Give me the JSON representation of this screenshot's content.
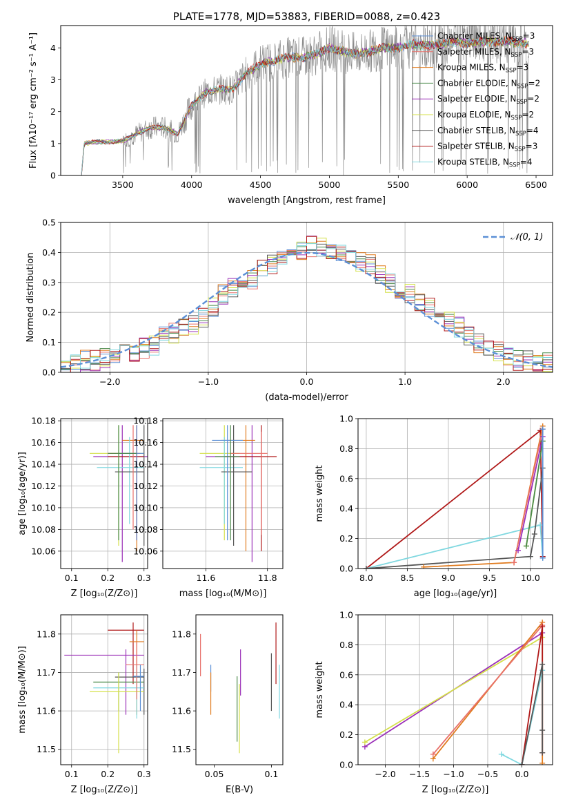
{
  "colors": {
    "chabrier_miles": "#5b8fd6",
    "salpeter_miles": "#e8706a",
    "kroupa_miles": "#e07b1f",
    "chabrier_elodie": "#4a8a4a",
    "salpeter_elodie": "#9b30b8",
    "kroupa_elodie": "#d4e04a",
    "chabrier_stelib": "#555555",
    "salpeter_stelib": "#b01818",
    "kroupa_stelib": "#80d8e0",
    "spectrum": "#8c8c8c",
    "normal": "#5b8fd6",
    "grid": "#b0b0b0"
  },
  "chart_data": [
    {
      "type": "line",
      "title": "PLATE=1778, MJD=53883, FIBERID=0088, z=0.423",
      "xlabel": "wavelength [Angstrom, rest frame]",
      "ylabel": "Flux [fλ10⁻¹⁷ erg cm⁻² s⁻¹ A⁻¹]",
      "xlim": [
        3050,
        6620
      ],
      "ylim": [
        0,
        4.7
      ],
      "xticks": [
        3500,
        4000,
        4500,
        5000,
        5500,
        6000,
        6500
      ],
      "yticks": [
        0,
        1,
        2,
        3,
        4
      ],
      "legend": [
        {
          "base": "Chabrier MILES, N",
          "sub": "SSP",
          "tail": "=3",
          "color": "chabrier_miles"
        },
        {
          "base": "Salpeter MILES, N",
          "sub": "SSP",
          "tail": "=3",
          "color": "salpeter_miles"
        },
        {
          "base": "Kroupa MILES, N",
          "sub": "SSP",
          "tail": "=3",
          "color": "kroupa_miles"
        },
        {
          "base": "Chabrier ELODIE, N",
          "sub": "SSP",
          "tail": "=2",
          "color": "chabrier_elodie"
        },
        {
          "base": "Salpeter ELODIE, N",
          "sub": "SSP",
          "tail": "=2",
          "color": "salpeter_elodie"
        },
        {
          "base": "Kroupa ELODIE, N",
          "sub": "SSP",
          "tail": "=2",
          "color": "kroupa_elodie"
        },
        {
          "base": "Chabrier STELIB, N",
          "sub": "SSP",
          "tail": "=4",
          "color": "chabrier_stelib"
        },
        {
          "base": "Salpeter STELIB, N",
          "sub": "SSP",
          "tail": "=3",
          "color": "salpeter_stelib"
        },
        {
          "base": "Kroupa STELIB, N",
          "sub": "SSP",
          "tail": "=4",
          "color": "kroupa_stelib"
        }
      ],
      "continuum": [
        [
          3200,
          0
        ],
        [
          3220,
          1.0
        ],
        [
          3300,
          1.05
        ],
        [
          3400,
          1.05
        ],
        [
          3500,
          1.08
        ],
        [
          3600,
          1.3
        ],
        [
          3700,
          1.5
        ],
        [
          3800,
          1.5
        ],
        [
          3900,
          1.3
        ],
        [
          4000,
          2.2
        ],
        [
          4100,
          2.6
        ],
        [
          4200,
          2.7
        ],
        [
          4300,
          2.7
        ],
        [
          4400,
          3.2
        ],
        [
          4500,
          3.5
        ],
        [
          4600,
          3.6
        ],
        [
          4700,
          3.7
        ],
        [
          4800,
          3.7
        ],
        [
          4900,
          3.8
        ],
        [
          5000,
          4.0
        ],
        [
          5100,
          3.9
        ],
        [
          5200,
          3.8
        ],
        [
          5300,
          3.9
        ],
        [
          5400,
          4.0
        ],
        [
          5500,
          4.0
        ],
        [
          5600,
          4.1
        ],
        [
          5700,
          4.1
        ],
        [
          5800,
          4.1
        ],
        [
          5900,
          4.2
        ],
        [
          6000,
          4.15
        ],
        [
          6100,
          4.2
        ],
        [
          6200,
          4.2
        ],
        [
          6300,
          4.2
        ],
        [
          6400,
          4.15
        ],
        [
          6450,
          4.15
        ]
      ]
    },
    {
      "type": "line",
      "xlabel": "(data-model)/error",
      "ylabel": "Normed distribution",
      "xlim": [
        -2.5,
        2.5
      ],
      "ylim": [
        0,
        0.5
      ],
      "xticks": [
        -2,
        -1,
        0,
        1,
        2
      ],
      "yticks": [
        0.0,
        0.1,
        0.2,
        0.3,
        0.4,
        0.5
      ],
      "legend_label": "𝒩(0, 1)",
      "bins": [
        -2.5,
        -2.4,
        -2.3,
        -2.2,
        -2.1,
        -2.0,
        -1.9,
        -1.8,
        -1.7,
        -1.6,
        -1.5,
        -1.4,
        -1.3,
        -1.2,
        -1.1,
        -1.0,
        -0.9,
        -0.8,
        -0.7,
        -0.6,
        -0.5,
        -0.4,
        -0.3,
        -0.2,
        -0.1,
        0.0,
        0.1,
        0.2,
        0.3,
        0.4,
        0.5,
        0.6,
        0.7,
        0.8,
        0.9,
        1.0,
        1.1,
        1.2,
        1.3,
        1.4,
        1.5,
        1.6,
        1.7,
        1.8,
        1.9,
        2.0,
        2.1,
        2.2,
        2.3,
        2.4
      ],
      "hist_base": [
        0.02,
        0.03,
        0.04,
        0.04,
        0.05,
        0.05,
        0.06,
        0.07,
        0.08,
        0.09,
        0.12,
        0.13,
        0.15,
        0.16,
        0.18,
        0.22,
        0.26,
        0.28,
        0.28,
        0.31,
        0.34,
        0.36,
        0.38,
        0.4,
        0.41,
        0.42,
        0.42,
        0.41,
        0.4,
        0.39,
        0.37,
        0.36,
        0.33,
        0.3,
        0.28,
        0.26,
        0.24,
        0.22,
        0.2,
        0.17,
        0.15,
        0.12,
        0.1,
        0.08,
        0.07,
        0.05,
        0.04,
        0.04,
        0.03,
        0.03
      ]
    },
    {
      "type": "scatter",
      "xlabel": "Z [log₁₀(Z/Z⊙)]",
      "ylabel": "age  [log₁₀(age/yr)]",
      "xlim": [
        0.07,
        0.31
      ],
      "ylim": [
        10.044,
        10.182
      ],
      "xticks": [
        0.1,
        0.2,
        0.3
      ],
      "yticks": [
        10.06,
        10.08,
        10.1,
        10.12,
        10.14,
        10.16,
        10.18
      ],
      "points": [
        {
          "c": "salpeter_elodie",
          "x": 0.24,
          "y": 10.147,
          "xe": [
            0.16,
            0.31
          ],
          "ye": [
            10.05,
            10.176
          ]
        },
        {
          "c": "kroupa_miles",
          "x": 0.28,
          "y": 10.162,
          "xe": [
            0.24,
            0.3
          ],
          "ye": [
            10.06,
            10.176
          ]
        },
        {
          "c": "salpeter_stelib",
          "x": 0.28,
          "y": 10.147,
          "xe": [
            0.2,
            0.3
          ],
          "ye": [
            10.07,
            10.176
          ]
        },
        {
          "c": "kroupa_elodie",
          "x": 0.23,
          "y": 10.15,
          "xe": [
            0.15,
            0.3
          ],
          "ye": [
            10.065,
            10.176
          ]
        },
        {
          "c": "kroupa_stelib",
          "x": 0.26,
          "y": 10.137,
          "xe": [
            0.17,
            0.3
          ],
          "ye": [
            10.085,
            10.165
          ]
        },
        {
          "c": "chabrier_stelib",
          "x": 0.3,
          "y": 10.133,
          "xe": [
            0.22,
            0.3
          ],
          "ye": [
            10.065,
            10.176
          ]
        },
        {
          "c": "salpeter_miles",
          "x": 0.27,
          "y": 10.15,
          "xe": [
            0.2,
            0.29
          ],
          "ye": [
            10.08,
            10.176
          ]
        },
        {
          "c": "chabrier_miles",
          "x": 0.28,
          "y": 10.15,
          "xe": [
            0.23,
            0.3
          ],
          "ye": [
            10.07,
            10.176
          ]
        },
        {
          "c": "chabrier_elodie",
          "x": 0.23,
          "y": 10.15,
          "xe": [
            0.2,
            0.28
          ],
          "ye": [
            10.07,
            10.176
          ]
        }
      ]
    },
    {
      "type": "scatter",
      "xlabel": "mass [log₁₀(M/M⊙)]",
      "ylabel": "",
      "xlim": [
        11.46,
        11.85
      ],
      "ylim": [
        10.044,
        10.182
      ],
      "xticks": [
        11.6,
        11.8
      ],
      "yticks": [
        10.06,
        10.08,
        10.1,
        10.12,
        10.14,
        10.16,
        10.18
      ],
      "points": [
        {
          "c": "salpeter_elodie",
          "x": 11.75,
          "y": 10.147,
          "xe": [
            11.6,
            11.78
          ],
          "ye": [
            10.05,
            10.176
          ]
        },
        {
          "c": "kroupa_miles",
          "x": 11.73,
          "y": 10.162,
          "xe": [
            11.65,
            11.76
          ],
          "ye": [
            10.06,
            10.176
          ]
        },
        {
          "c": "salpeter_stelib",
          "x": 11.78,
          "y": 10.147,
          "xe": [
            11.66,
            11.83
          ],
          "ye": [
            10.06,
            10.176
          ]
        },
        {
          "c": "kroupa_elodie",
          "x": 11.66,
          "y": 10.15,
          "xe": [
            11.58,
            11.71
          ],
          "ye": [
            10.07,
            10.176
          ]
        },
        {
          "c": "kroupa_stelib",
          "x": 11.66,
          "y": 10.137,
          "xe": [
            11.58,
            11.72
          ],
          "ye": [
            10.085,
            10.165
          ]
        },
        {
          "c": "chabrier_stelib",
          "x": 11.69,
          "y": 10.133,
          "xe": [
            11.65,
            11.75
          ],
          "ye": [
            10.065,
            10.176
          ]
        },
        {
          "c": "salpeter_miles",
          "x": 11.78,
          "y": 10.15,
          "xe": [
            11.68,
            11.8
          ],
          "ye": [
            10.075,
            10.17
          ]
        },
        {
          "c": "chabrier_miles",
          "x": 11.67,
          "y": 10.162,
          "xe": [
            11.62,
            11.72
          ],
          "ye": [
            10.07,
            10.176
          ]
        },
        {
          "c": "chabrier_elodie",
          "x": 11.68,
          "y": 10.147,
          "xe": [
            11.63,
            11.71
          ],
          "ye": [
            10.07,
            10.176
          ]
        }
      ]
    },
    {
      "type": "line",
      "xlabel": "age  [log₁₀(age/yr)]",
      "ylabel": "mass weight",
      "xlim": [
        7.9,
        10.27
      ],
      "ylim": [
        0,
        1.0
      ],
      "xticks": [
        8.0,
        8.5,
        9.0,
        9.5,
        10.0
      ],
      "yticks": [
        0.0,
        0.2,
        0.4,
        0.6,
        0.8,
        1.0
      ],
      "series": [
        {
          "c": "salpeter_stelib",
          "x": [
            8.0,
            10.12,
            10.15
          ],
          "y": [
            0.0,
            0.92,
            0.08
          ]
        },
        {
          "c": "kroupa_stelib",
          "x": [
            8.0,
            10.12,
            10.15
          ],
          "y": [
            0.0,
            0.29,
            0.07
          ]
        },
        {
          "c": "chabrier_stelib",
          "x": [
            8.0,
            10.0,
            10.05,
            10.15
          ],
          "y": [
            0.0,
            0.08,
            0.23,
            0.67
          ]
        },
        {
          "c": "kroupa_miles",
          "x": [
            8.7,
            9.8,
            10.15
          ],
          "y": [
            0.01,
            0.04,
            0.95
          ]
        },
        {
          "c": "salpeter_miles",
          "x": [
            9.8,
            10.15
          ],
          "y": [
            0.04,
            0.93
          ]
        },
        {
          "c": "salpeter_elodie",
          "x": [
            9.85,
            10.15
          ],
          "y": [
            0.12,
            0.88
          ]
        },
        {
          "c": "kroupa_elodie",
          "x": [
            9.95,
            10.15
          ],
          "y": [
            0.15,
            0.85
          ]
        },
        {
          "c": "chabrier_elodie",
          "x": [
            9.95,
            10.15
          ],
          "y": [
            0.15,
            0.85
          ]
        },
        {
          "c": "chabrier_miles",
          "x": [
            10.15,
            10.15
          ],
          "y": [
            0.07,
            0.93
          ]
        }
      ]
    },
    {
      "type": "scatter",
      "xlabel": "Z [log₁₀(Z/Z⊙)]",
      "ylabel": "mass [log₁₀(M/M⊙)]",
      "xlim": [
        0.07,
        0.31
      ],
      "ylim": [
        11.46,
        11.85
      ],
      "xticks": [
        0.1,
        0.2,
        0.3
      ],
      "yticks": [
        11.5,
        11.6,
        11.7,
        11.8
      ],
      "points": [
        {
          "c": "salpeter_stelib",
          "x": 0.27,
          "y": 11.81,
          "xe": [
            0.2,
            0.3
          ],
          "ye": [
            11.67,
            11.83
          ]
        },
        {
          "c": "kroupa_miles",
          "x": 0.28,
          "y": 11.78,
          "xe": [
            0.26,
            0.3
          ],
          "ye": [
            11.59,
            11.81
          ]
        },
        {
          "c": "salpeter_elodie",
          "x": 0.25,
          "y": 11.745,
          "xe": [
            0.08,
            0.3
          ],
          "ye": [
            11.59,
            11.76
          ]
        },
        {
          "c": "chabrier_stelib",
          "x": 0.3,
          "y": 11.688,
          "xe": [
            0.22,
            0.3
          ],
          "ye": [
            11.59,
            11.71
          ]
        },
        {
          "c": "chabrier_elodie",
          "x": 0.23,
          "y": 11.675,
          "xe": [
            0.16,
            0.3
          ],
          "ye": [
            11.6,
            11.7
          ]
        },
        {
          "c": "kroupa_stelib",
          "x": 0.28,
          "y": 11.66,
          "xe": [
            0.16,
            0.3
          ],
          "ye": [
            11.58,
            11.72
          ]
        },
        {
          "c": "kroupa_elodie",
          "x": 0.23,
          "y": 11.65,
          "xe": [
            0.15,
            0.3
          ],
          "ye": [
            11.49,
            11.7
          ]
        },
        {
          "c": "salpeter_miles",
          "x": 0.28,
          "y": 11.72,
          "xe": [
            0.25,
            0.3
          ],
          "ye": [
            11.63,
            11.78
          ]
        },
        {
          "c": "chabrier_miles",
          "x": 0.29,
          "y": 11.69,
          "xe": [
            0.27,
            0.3
          ],
          "ye": [
            11.6,
            11.72
          ]
        }
      ]
    },
    {
      "type": "scatter",
      "xlabel": "E(B-V)",
      "ylabel": "",
      "xlim": [
        0.034,
        0.11
      ],
      "ylim": [
        11.46,
        11.85
      ],
      "xticks": [
        0.05,
        0.1
      ],
      "yticks": [
        11.5,
        11.6,
        11.7,
        11.8
      ],
      "points": [
        {
          "c": "salpeter_miles",
          "x": 0.038,
          "y": 11.73,
          "ye": [
            11.69,
            11.8
          ]
        },
        {
          "c": "chabrier_miles",
          "x": 0.047,
          "y": 11.69,
          "ye": [
            11.65,
            11.72
          ]
        },
        {
          "c": "kroupa_miles",
          "x": 0.047,
          "y": 11.64,
          "ye": [
            11.59,
            11.7
          ]
        },
        {
          "c": "chabrier_elodie",
          "x": 0.07,
          "y": 11.63,
          "ye": [
            11.52,
            11.69
          ]
        },
        {
          "c": "kroupa_elodie",
          "x": 0.072,
          "y": 11.6,
          "ye": [
            11.49,
            11.67
          ]
        },
        {
          "c": "salpeter_elodie",
          "x": 0.073,
          "y": 11.71,
          "ye": [
            11.64,
            11.76
          ]
        },
        {
          "c": "chabrier_stelib",
          "x": 0.1,
          "y": 11.68,
          "ye": [
            11.6,
            11.75
          ]
        },
        {
          "c": "salpeter_stelib",
          "x": 0.104,
          "y": 11.76,
          "ye": [
            11.67,
            11.83
          ]
        },
        {
          "c": "kroupa_stelib",
          "x": 0.107,
          "y": 11.66,
          "ye": [
            11.58,
            11.72
          ]
        }
      ]
    },
    {
      "type": "line",
      "xlabel": "Z [log₁₀(Z/Z⊙)]",
      "ylabel": "mass weight",
      "xlim": [
        -2.4,
        0.45
      ],
      "ylim": [
        0,
        1.0
      ],
      "xticks": [
        -2.0,
        -1.5,
        -1.0,
        -0.5,
        0.0
      ],
      "yticks": [
        0.0,
        0.2,
        0.4,
        0.6,
        0.8,
        1.0
      ],
      "series": [
        {
          "c": "salpeter_elodie",
          "x": [
            -2.3,
            0.3
          ],
          "y": [
            0.12,
            0.88
          ]
        },
        {
          "c": "kroupa_elodie",
          "x": [
            -2.3,
            0.3
          ],
          "y": [
            0.15,
            0.85
          ]
        },
        {
          "c": "kroupa_miles",
          "x": [
            -1.3,
            0.3,
            0.3
          ],
          "y": [
            0.04,
            0.95,
            0.01
          ]
        },
        {
          "c": "salpeter_miles",
          "x": [
            -1.3,
            0.3
          ],
          "y": [
            0.07,
            0.93
          ]
        },
        {
          "c": "kroupa_stelib",
          "x": [
            -0.3,
            0.0,
            0.3
          ],
          "y": [
            0.07,
            0.0,
            0.63
          ]
        },
        {
          "c": "salpeter_stelib",
          "x": [
            0.0,
            0.3,
            0.3
          ],
          "y": [
            0.0,
            0.92,
            0.08
          ]
        },
        {
          "c": "chabrier_stelib",
          "x": [
            0.0,
            0.3,
            0.3,
            0.3
          ],
          "y": [
            0.0,
            0.67,
            0.23,
            0.08
          ]
        }
      ]
    }
  ]
}
